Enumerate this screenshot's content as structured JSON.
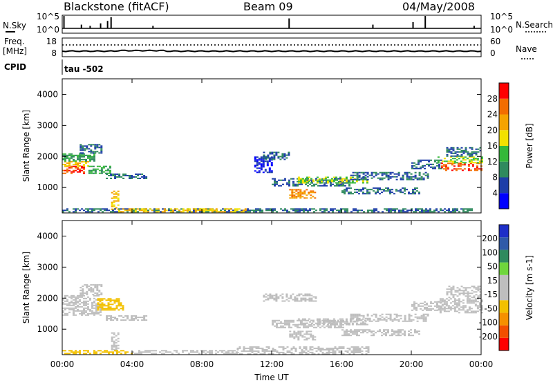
{
  "header": {
    "station": "Blackstone (fitACF)",
    "beam": "Beam 09",
    "date": "04/May/2008"
  },
  "noise_panel": {
    "left_label": "N.Sky",
    "left_ticks": [
      "10^5",
      "10^0"
    ],
    "right_ticks": [
      "10^5",
      "10^0"
    ],
    "right_label": "N.Search",
    "spikes": [
      {
        "time": 0.1,
        "level": 1.0
      },
      {
        "time": 1.1,
        "level": 0.3
      },
      {
        "time": 1.6,
        "level": 0.2
      },
      {
        "time": 2.2,
        "level": 0.4
      },
      {
        "time": 2.6,
        "level": 0.6
      },
      {
        "time": 2.8,
        "level": 0.9
      },
      {
        "time": 5.2,
        "level": 0.2
      },
      {
        "time": 13.0,
        "level": 0.8
      },
      {
        "time": 17.8,
        "level": 0.3
      },
      {
        "time": 20.1,
        "level": 0.5
      },
      {
        "time": 20.8,
        "level": 1.0
      },
      {
        "time": 23.6,
        "level": 0.2
      }
    ]
  },
  "freq_panel": {
    "label_line1": "Freq.",
    "label_line2": "[MHz]",
    "left_ticks": [
      "18",
      "8"
    ],
    "right_ticks": [
      "60",
      "0"
    ],
    "right_label": "Nave",
    "cpid_label": "CPID",
    "cpid_value": "tau -502"
  },
  "time_axis": {
    "ticks": [
      "00:00",
      "04:00",
      "08:00",
      "12:00",
      "16:00",
      "20:00",
      "00:00"
    ],
    "label": "Time UT"
  },
  "colors": {
    "power_scale": [
      "#0000ff",
      "#1e3ea8",
      "#2f8a5e",
      "#35b83a",
      "#f2e100",
      "#f5a300",
      "#f26d00",
      "#ff0000"
    ],
    "velocity_scale": [
      "#ff0000",
      "#f24f00",
      "#f59000",
      "#f2c000",
      "#bebebe",
      "#bebebe",
      "#6fd63c",
      "#2f8a5e",
      "#2f5aa8",
      "#1e2fc8"
    ]
  },
  "chart_data": [
    {
      "type": "heatmap",
      "name": "power",
      "ylabel": "Slant Range [km]",
      "yticks": [
        "1000",
        "2000",
        "3000",
        "4000"
      ],
      "ylim": [
        180,
        4500
      ],
      "xlim": [
        0,
        24
      ],
      "colorbar_label": "Power [dB]",
      "colorbar_ticks": [
        "4",
        "8",
        "12",
        "16",
        "20",
        "24",
        "28"
      ],
      "colorbar_range": [
        0,
        32
      ],
      "regions": [
        {
          "t0": 0.0,
          "t1": 1.3,
          "r0": 1450,
          "r1": 1700,
          "value": 28
        },
        {
          "t0": 0.0,
          "t1": 1.5,
          "r0": 1700,
          "r1": 1850,
          "value": 20
        },
        {
          "t0": 0.0,
          "t1": 1.8,
          "r0": 1850,
          "r1": 2100,
          "value": 12
        },
        {
          "t0": 1.0,
          "t1": 2.2,
          "r0": 2100,
          "r1": 2400,
          "value": 8
        },
        {
          "t0": 1.5,
          "t1": 2.8,
          "r0": 1450,
          "r1": 1700,
          "value": 12
        },
        {
          "t0": 2.5,
          "t1": 4.8,
          "r0": 1300,
          "r1": 1450,
          "value": 8
        },
        {
          "t0": 2.8,
          "t1": 3.2,
          "r0": 300,
          "r1": 900,
          "value": 20
        },
        {
          "t0": 0.0,
          "t1": 23.5,
          "r0": 220,
          "r1": 330,
          "value": 8
        },
        {
          "t0": 3.2,
          "t1": 10.5,
          "r0": 220,
          "r1": 330,
          "value": 20
        },
        {
          "t0": 11.0,
          "t1": 12.0,
          "r0": 1500,
          "r1": 2000,
          "value": 4
        },
        {
          "t0": 11.5,
          "t1": 13.0,
          "r0": 1900,
          "r1": 2150,
          "value": 8
        },
        {
          "t0": 12.0,
          "t1": 16.5,
          "r0": 1050,
          "r1": 1300,
          "value": 8
        },
        {
          "t0": 13.0,
          "t1": 14.5,
          "r0": 650,
          "r1": 950,
          "value": 24
        },
        {
          "t0": 13.5,
          "t1": 17.5,
          "r0": 1150,
          "r1": 1350,
          "value": 16
        },
        {
          "t0": 16.0,
          "t1": 20.5,
          "r0": 800,
          "r1": 1000,
          "value": 8
        },
        {
          "t0": 16.5,
          "t1": 21.0,
          "r0": 1250,
          "r1": 1500,
          "value": 8
        },
        {
          "t0": 20.0,
          "t1": 21.7,
          "r0": 1600,
          "r1": 1900,
          "value": 8
        },
        {
          "t0": 21.7,
          "t1": 24.0,
          "r0": 1550,
          "r1": 1800,
          "value": 28
        },
        {
          "t0": 21.5,
          "t1": 24.0,
          "r0": 1800,
          "r1": 2000,
          "value": 16
        },
        {
          "t0": 22.0,
          "t1": 24.0,
          "r0": 2000,
          "r1": 2300,
          "value": 8
        }
      ]
    },
    {
      "type": "heatmap",
      "name": "velocity",
      "ylabel": "Slant Range [km]",
      "yticks": [
        "1000",
        "2000",
        "3000",
        "4000"
      ],
      "ylim": [
        180,
        4500
      ],
      "xlim": [
        0,
        24
      ],
      "colorbar_label": "Velocity [m s-1]",
      "colorbar_ticks": [
        "-200",
        "-100",
        "-50",
        "-15",
        "15",
        "50",
        "100",
        "200"
      ],
      "colorbar_range": [
        -250,
        250
      ],
      "regions": [
        {
          "t0": 0.0,
          "t1": 2.2,
          "r0": 1450,
          "r1": 2100,
          "value": 0
        },
        {
          "t0": 1.0,
          "t1": 2.2,
          "r0": 2100,
          "r1": 2450,
          "value": 0
        },
        {
          "t0": 2.0,
          "t1": 3.5,
          "r0": 1600,
          "r1": 2000,
          "value": -60
        },
        {
          "t0": 2.5,
          "t1": 4.8,
          "r0": 1300,
          "r1": 1450,
          "value": -30
        },
        {
          "t0": 2.8,
          "t1": 3.2,
          "r0": 300,
          "r1": 900,
          "value": -40
        },
        {
          "t0": 0.0,
          "t1": 4.0,
          "r0": 220,
          "r1": 330,
          "value": -80
        },
        {
          "t0": 4.0,
          "t1": 10.0,
          "r0": 220,
          "r1": 330,
          "value": -40
        },
        {
          "t0": 10.0,
          "t1": 17.5,
          "r0": 220,
          "r1": 450,
          "value": 40
        },
        {
          "t0": 11.5,
          "t1": 14.5,
          "r0": 1900,
          "r1": 2150,
          "value": 0
        },
        {
          "t0": 12.0,
          "t1": 16.5,
          "r0": 1050,
          "r1": 1300,
          "value": 0
        },
        {
          "t0": 13.0,
          "t1": 14.5,
          "r0": 650,
          "r1": 950,
          "value": 0
        },
        {
          "t0": 13.5,
          "t1": 17.5,
          "r0": 1150,
          "r1": 1350,
          "value": 0
        },
        {
          "t0": 16.0,
          "t1": 20.5,
          "r0": 800,
          "r1": 1000,
          "value": 0
        },
        {
          "t0": 16.5,
          "t1": 21.0,
          "r0": 1250,
          "r1": 1500,
          "value": 0
        },
        {
          "t0": 20.0,
          "t1": 21.7,
          "r0": 1600,
          "r1": 1900,
          "value": 0
        },
        {
          "t0": 21.5,
          "t1": 24.0,
          "r0": 1550,
          "r1": 2000,
          "value": 0
        },
        {
          "t0": 22.0,
          "t1": 24.0,
          "r0": 2000,
          "r1": 2400,
          "value": 0
        }
      ]
    }
  ]
}
